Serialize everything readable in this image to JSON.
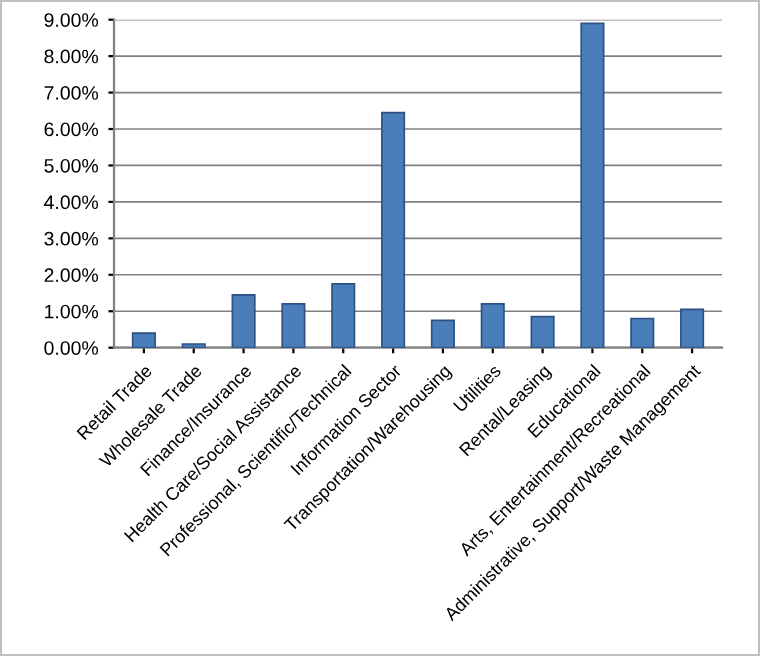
{
  "chart_data": {
    "type": "bar",
    "categories": [
      "Retail Trade",
      "Wholesale Trade",
      "Finance/Insurance",
      "Health Care/Social Assistance",
      "Professional, Scientific/Technical",
      "Information Sector",
      "Transportation/Warehousing",
      "Utilities",
      "Rental/Leasing",
      "Educational",
      "Arts, Entertainment/Recreational",
      "Administrative, Support/Waste Management"
    ],
    "values": [
      0.4,
      0.1,
      1.45,
      1.2,
      1.75,
      6.45,
      0.75,
      1.2,
      0.85,
      8.9,
      0.8,
      1.05
    ],
    "color": "#4a7ebb",
    "ylim": [
      0,
      9
    ],
    "yticks": [
      {
        "value": 0,
        "label": "0.00%"
      },
      {
        "value": 1,
        "label": "1.00%"
      },
      {
        "value": 2,
        "label": "2.00%"
      },
      {
        "value": 3,
        "label": "3.00%"
      },
      {
        "value": 4,
        "label": "4.00%"
      },
      {
        "value": 5,
        "label": "5.00%"
      },
      {
        "value": 6,
        "label": "6.00%"
      },
      {
        "value": 7,
        "label": "7.00%"
      },
      {
        "value": 8,
        "label": "8.00%"
      },
      {
        "value": 9,
        "label": "9.00%"
      }
    ],
    "grid": "y"
  }
}
